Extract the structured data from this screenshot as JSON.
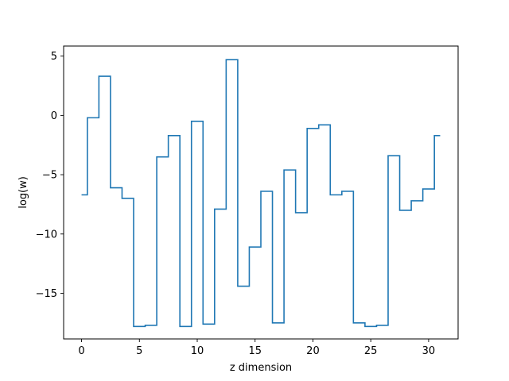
{
  "chart_data": {
    "type": "line",
    "drawstyle": "steps-mid",
    "title": "",
    "xlabel": "z dimension",
    "ylabel": "log(w)",
    "xlim": [
      -1.55,
      32.55
    ],
    "ylim": [
      -18.85,
      5.85
    ],
    "grid": false,
    "x_ticks": [
      0,
      5,
      10,
      15,
      20,
      25,
      30
    ],
    "y_ticks": [
      5,
      0,
      -5,
      -10,
      -15
    ],
    "y_tick_labels": [
      "5",
      "0",
      "−5",
      "−10",
      "−15"
    ],
    "line_color": "#1f77b4",
    "series": [
      {
        "x": [
          0,
          1,
          2,
          3,
          4,
          5,
          6,
          7,
          8,
          9,
          10,
          11,
          12,
          13,
          14,
          15,
          16,
          17,
          18,
          19,
          20,
          21,
          22,
          23,
          24,
          25,
          26,
          27,
          28,
          29,
          30,
          31
        ],
        "values": [
          -6.7,
          -0.2,
          3.3,
          -6.1,
          -7.0,
          -17.8,
          -17.7,
          -3.5,
          -1.7,
          -17.8,
          -0.5,
          -17.6,
          -7.9,
          4.7,
          -14.4,
          -11.1,
          -6.4,
          -17.5,
          -4.6,
          -8.2,
          -1.1,
          -0.8,
          -6.7,
          -6.4,
          -17.5,
          -17.8,
          -17.7,
          -3.4,
          -8.0,
          -7.2,
          -6.2,
          -1.7
        ]
      }
    ]
  }
}
